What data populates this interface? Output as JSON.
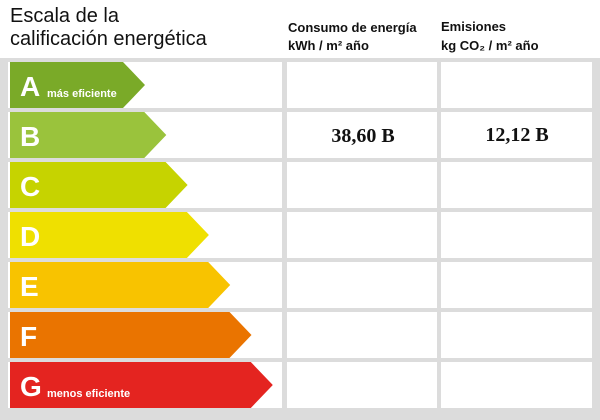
{
  "header": {
    "title": [
      "Escala de la",
      "calificación energética"
    ],
    "columns": [
      [
        "Consumo de energía",
        "kWh / m² año"
      ],
      [
        "Emisiones",
        "kg CO₂ / m² año"
      ]
    ]
  },
  "rows": [
    {
      "letter": "A",
      "note": "más eficiente",
      "color": "#7aaa28"
    },
    {
      "letter": "B",
      "color": "#9ac33c",
      "consumo": "38,60 B",
      "emisiones": "12,12 B"
    },
    {
      "letter": "C",
      "color": "#c6d300"
    },
    {
      "letter": "D",
      "color": "#efe000"
    },
    {
      "letter": "E",
      "color": "#f8c300"
    },
    {
      "letter": "F",
      "color": "#ea7400"
    },
    {
      "letter": "G",
      "note": "menos eficiente",
      "color": "#e42420"
    }
  ]
}
